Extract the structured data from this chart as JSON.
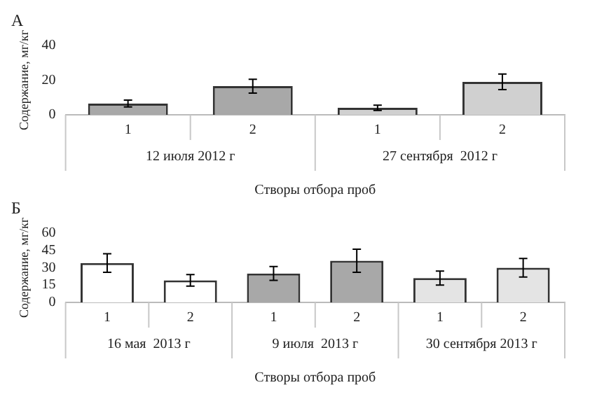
{
  "chart_data": [
    {
      "type": "bar",
      "title": "А",
      "categories": [
        "1",
        "2",
        "1",
        "2"
      ],
      "values": [
        6.5,
        16.5,
        4,
        19
      ],
      "errors": [
        2,
        4,
        1.5,
        4.5
      ],
      "colors": [
        "#a8a8a8",
        "#a8a8a8",
        "#d0d0d0",
        "#d0d0d0"
      ],
      "ylim": [
        0,
        40
      ],
      "yticks": [
        0,
        20,
        40
      ],
      "ylabel": "Содержание, мг/кг",
      "xlabel": "Створы отбора проб",
      "annotations": [
        "12 июля 2012 г",
        "27 сентября  2012 г"
      ],
      "grid": false,
      "legend": false
    },
    {
      "type": "bar",
      "title": "Б",
      "categories": [
        "1",
        "2",
        "1",
        "2",
        "1",
        "2"
      ],
      "values": [
        34,
        19,
        25,
        36,
        21,
        30
      ],
      "errors": [
        8,
        5,
        6,
        10,
        6,
        8
      ],
      "colors": [
        "#ffffff",
        "#ffffff",
        "#a8a8a8",
        "#a8a8a8",
        "#e4e4e4",
        "#e4e4e4"
      ],
      "ylim": [
        0,
        60
      ],
      "yticks": [
        0,
        15,
        30,
        45,
        60
      ],
      "ylabel": "Содержание, мг/кг",
      "xlabel": "Створы отбора проб",
      "annotations": [
        "16 мая  2013 г",
        "9 июля  2013 г",
        "30 сентября 2013 г"
      ],
      "grid": false,
      "legend": false
    }
  ]
}
